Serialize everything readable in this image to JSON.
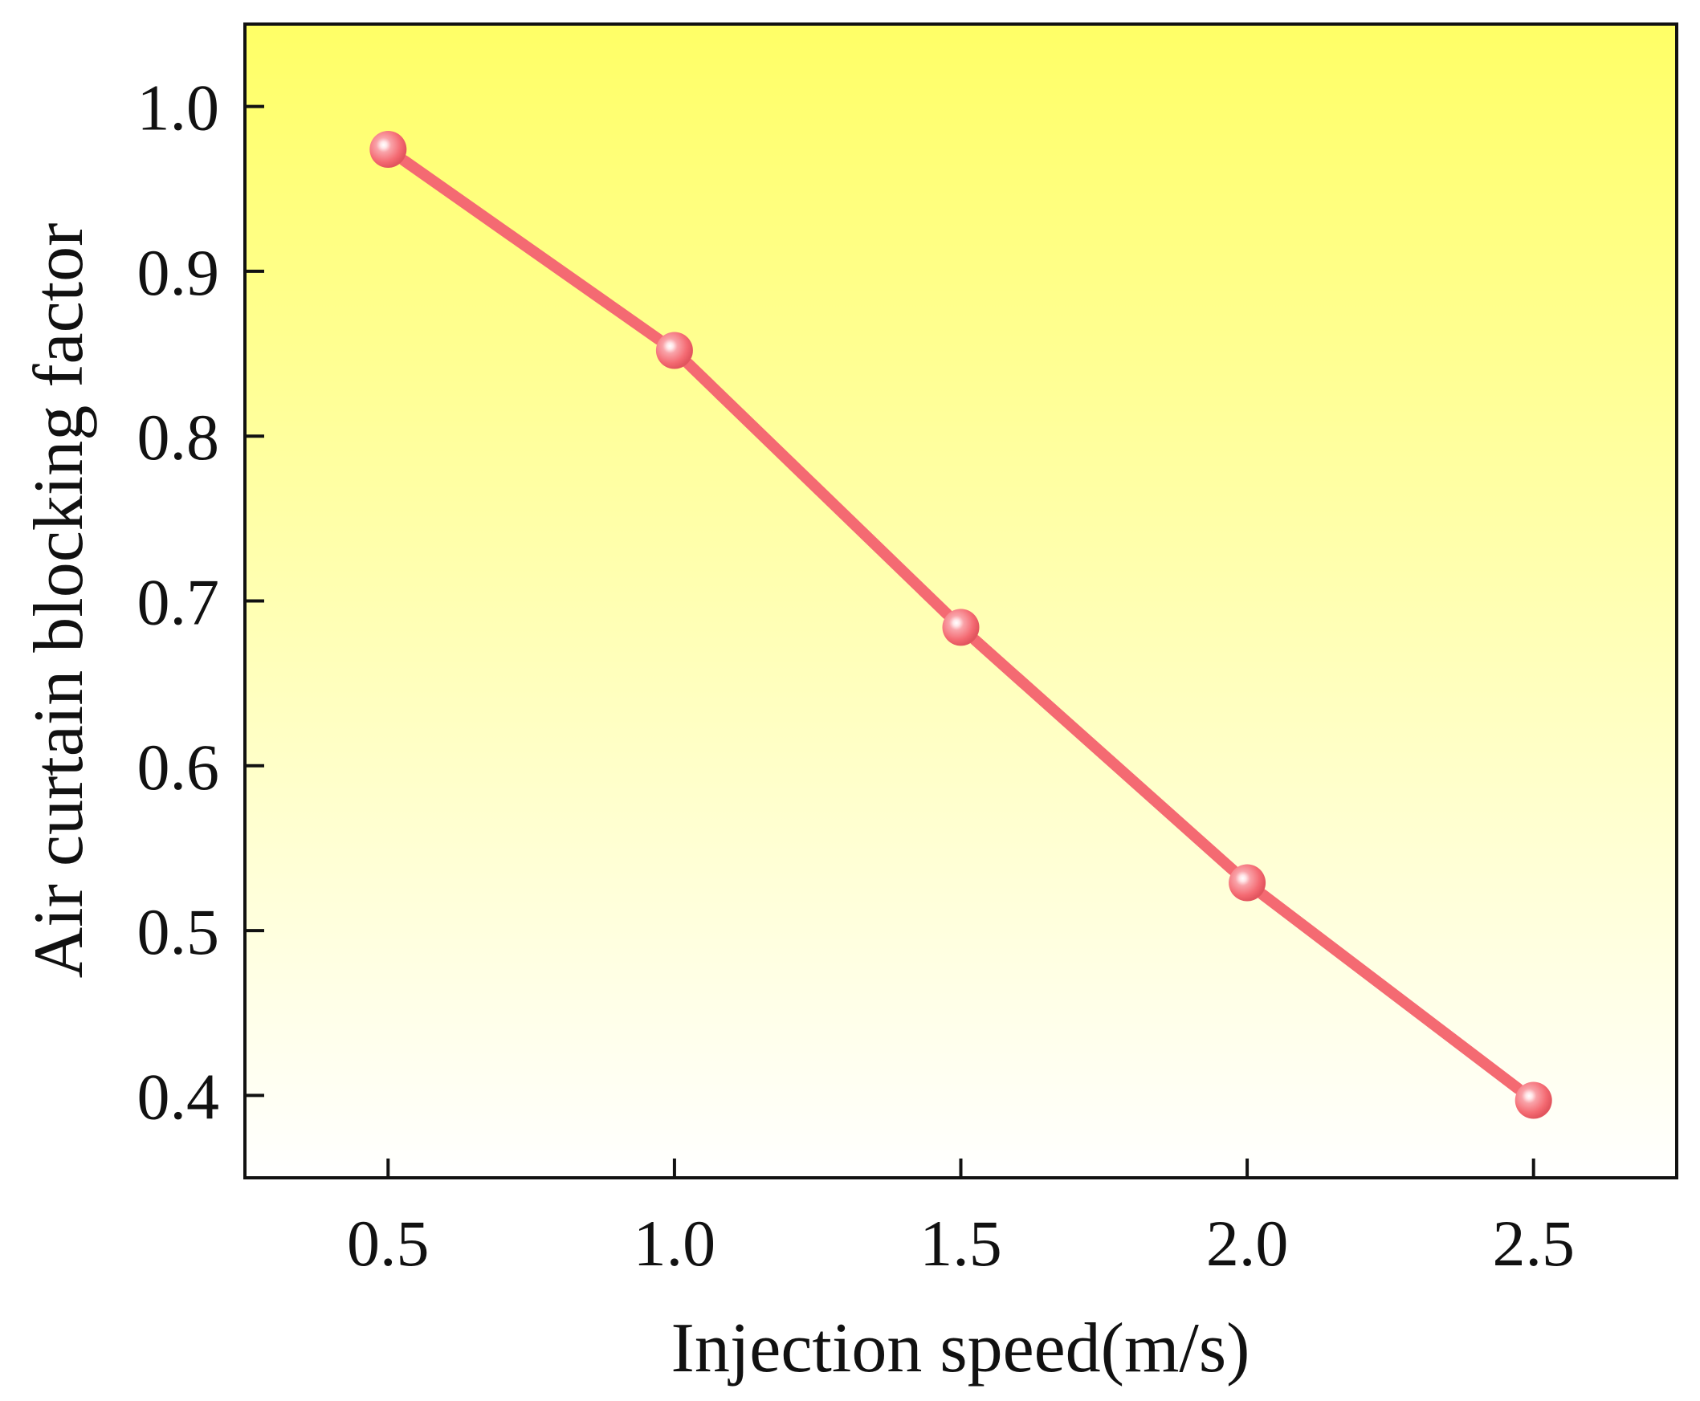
{
  "chart_data": {
    "type": "line",
    "title": "",
    "xlabel": "Injection speed(m/s)",
    "ylabel": "Air curtain blocking factor",
    "xlim": [
      0.25,
      2.75
    ],
    "ylim": [
      0.35,
      1.05
    ],
    "xticks": [
      0.5,
      1.0,
      1.5,
      2.0,
      2.5
    ],
    "xtick_labels": [
      "0.5",
      "1.0",
      "1.5",
      "2.0",
      "2.5"
    ],
    "yticks": [
      0.4,
      0.5,
      0.6,
      0.7,
      0.8,
      0.9,
      1.0
    ],
    "ytick_labels": [
      "0.4",
      "0.5",
      "0.6",
      "0.7",
      "0.8",
      "0.9",
      "1.0"
    ],
    "grid": false,
    "legend": "none",
    "background_gradient": {
      "top": "#ffff66",
      "bottom": "#ffffff"
    },
    "series": [
      {
        "name": "Air curtain blocking factor",
        "color": "#f46a72",
        "marker": "sphere",
        "x": [
          0.5,
          1.0,
          1.5,
          2.0,
          2.5
        ],
        "y": [
          0.974,
          0.852,
          0.684,
          0.529,
          0.397
        ]
      }
    ]
  }
}
